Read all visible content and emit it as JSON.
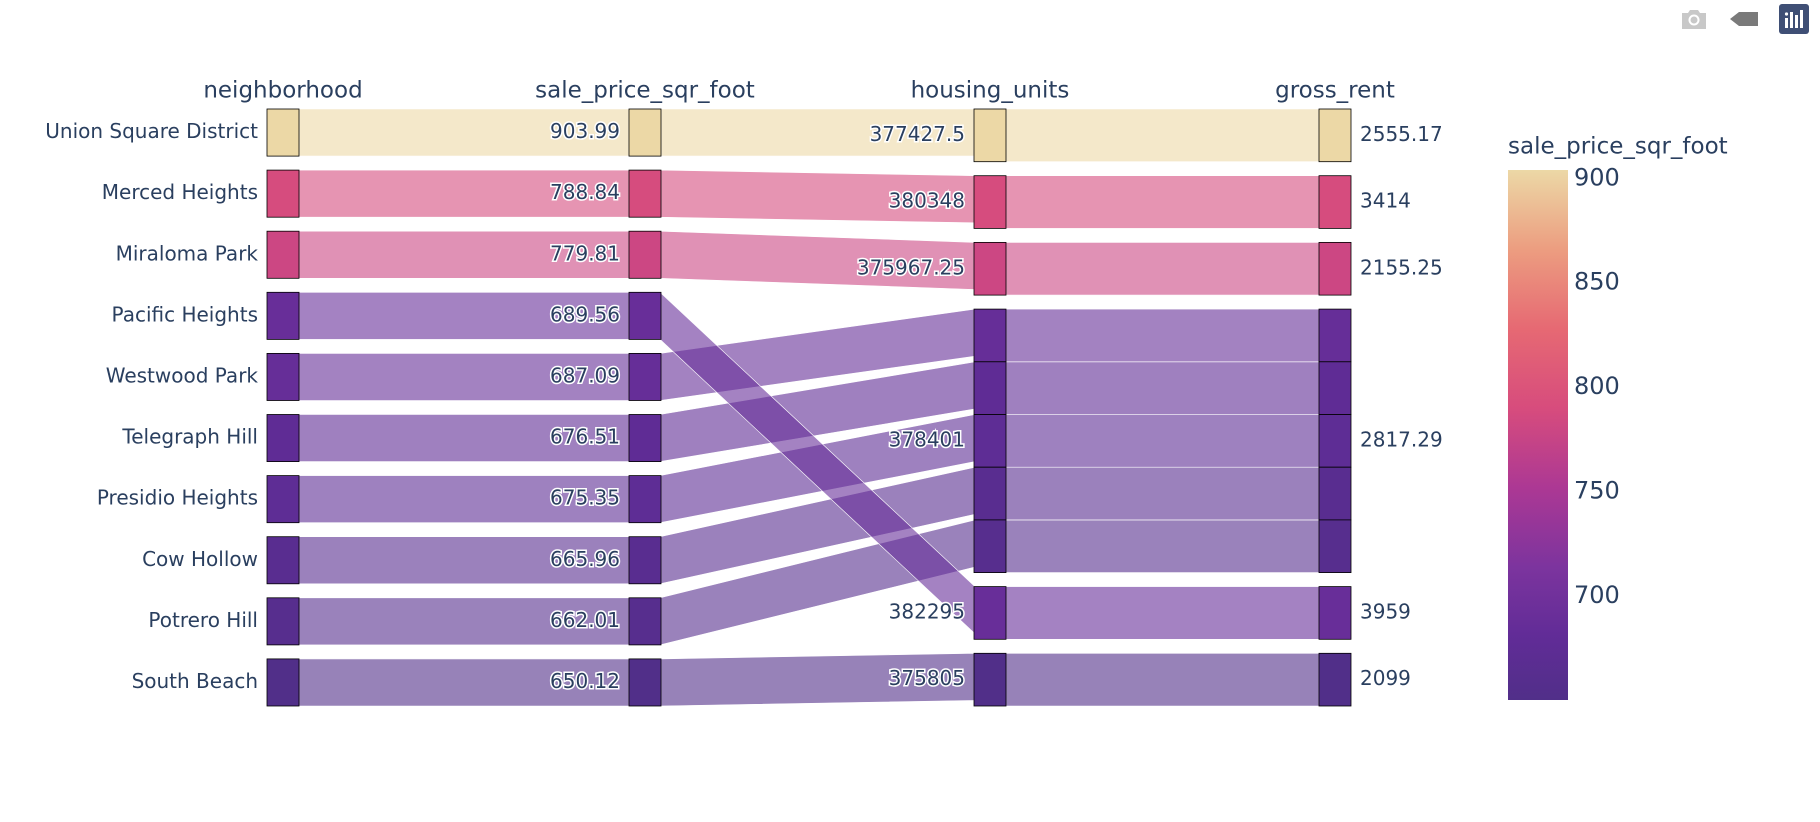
{
  "toolbar": {
    "download_icon": "camera-icon",
    "back_icon": "back-arrow-icon",
    "logo_icon": "plotly-logo-icon"
  },
  "chart_data": {
    "type": "parallel-categories",
    "dimensions": [
      "neighborhood",
      "sale_price_sqr_foot",
      "housing_units",
      "gross_rent"
    ],
    "colorbar": {
      "title": "sale_price_sqr_foot",
      "ticks": [
        900,
        850,
        800,
        750,
        700
      ],
      "range": [
        650.12,
        903.99
      ],
      "colorscale": "magma"
    },
    "rows": [
      {
        "neighborhood": "Union Square District",
        "sale_price_sqr_foot": "903.99",
        "housing_units": "377427.5",
        "gross_rent": "2555.17",
        "color_value": 903.99
      },
      {
        "neighborhood": "Merced Heights",
        "sale_price_sqr_foot": "788.84",
        "housing_units": "380348",
        "gross_rent": "3414",
        "color_value": 788.84
      },
      {
        "neighborhood": "Miraloma Park",
        "sale_price_sqr_foot": "779.81",
        "housing_units": "375967.25",
        "gross_rent": "2155.25",
        "color_value": 779.81
      },
      {
        "neighborhood": "Pacific Heights",
        "sale_price_sqr_foot": "689.56",
        "housing_units": "382295",
        "gross_rent": "3959",
        "color_value": 689.56
      },
      {
        "neighborhood": "Westwood Park",
        "sale_price_sqr_foot": "687.09",
        "housing_units": "378401",
        "gross_rent": "2817.29",
        "color_value": 687.09
      },
      {
        "neighborhood": "Telegraph Hill",
        "sale_price_sqr_foot": "676.51",
        "housing_units": "378401",
        "gross_rent": "2817.29",
        "color_value": 676.51
      },
      {
        "neighborhood": "Presidio Heights",
        "sale_price_sqr_foot": "675.35",
        "housing_units": "378401",
        "gross_rent": "2817.29",
        "color_value": 675.35
      },
      {
        "neighborhood": "Cow Hollow",
        "sale_price_sqr_foot": "665.96",
        "housing_units": "378401",
        "gross_rent": "2817.29",
        "color_value": 665.96
      },
      {
        "neighborhood": "Potrero Hill",
        "sale_price_sqr_foot": "662.01",
        "housing_units": "378401",
        "gross_rent": "2817.29",
        "color_value": 662.01
      },
      {
        "neighborhood": "South Beach",
        "sale_price_sqr_foot": "650.12",
        "housing_units": "375805",
        "gross_rent": "2099",
        "color_value": 650.12
      }
    ],
    "category_order": {
      "housing_units": [
        "377427.5",
        "380348",
        "375967.25",
        "378401",
        "382295",
        "375805"
      ],
      "gross_rent": [
        "2555.17",
        "3414",
        "2155.25",
        "2817.29",
        "3959",
        "2099"
      ]
    }
  }
}
